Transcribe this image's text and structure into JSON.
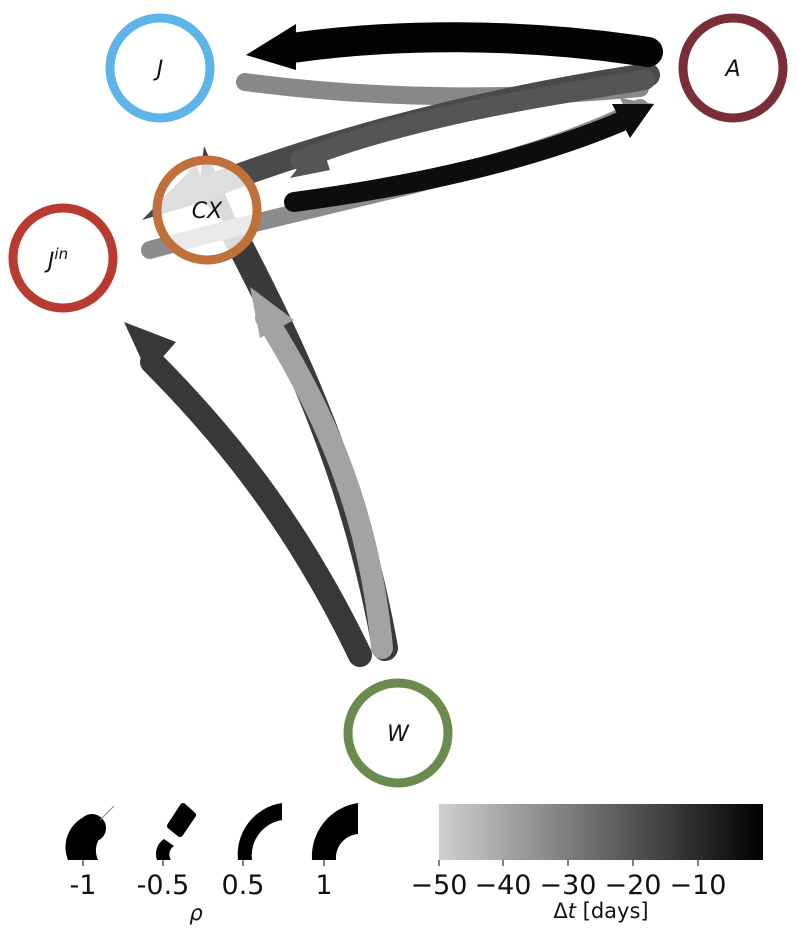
{
  "nodes": [
    {
      "id": "J",
      "label": "J",
      "sup": "",
      "color": "#5db4e8"
    },
    {
      "id": "A",
      "label": "A",
      "sup": "",
      "color": "#7a2e38"
    },
    {
      "id": "CX",
      "label": "CX",
      "sup": "",
      "color": "#c0703a"
    },
    {
      "id": "Jin",
      "label": "J",
      "sup": "in",
      "color": "#b83a30"
    },
    {
      "id": "W",
      "label": "W",
      "sup": "",
      "color": "#6a8a4e"
    }
  ],
  "edges": [
    {
      "from": "A",
      "to": "J",
      "shade": "#030303"
    },
    {
      "from": "Jin",
      "to": "A",
      "shade": "#8c8c8c"
    },
    {
      "from": "J",
      "to": "A",
      "shade": "#888888"
    },
    {
      "from": "A",
      "to": "CX",
      "shade": "#4a4a4a"
    },
    {
      "from": "A",
      "to": "CX",
      "shade": "#555555"
    },
    {
      "from": "CX",
      "to": "A",
      "shade": "#0d0d0d"
    },
    {
      "from": "W",
      "to": "CX",
      "shade": "#3a3a3a"
    },
    {
      "from": "W",
      "to": "Jin",
      "shade": "#383838"
    },
    {
      "from": "W",
      "to": "CX",
      "shade": "#a3a3a3"
    }
  ],
  "rho_legend": {
    "label": "ρ",
    "ticks": [
      "-1",
      "-0.5",
      "0.5",
      "1"
    ]
  },
  "dt_colorbar": {
    "label_prefix": "Δ",
    "label_var": "t",
    "label_suffix": " [days]",
    "color_low": "#d0d0d0",
    "color_high": "#000000",
    "ticks": [
      "−50",
      "−40",
      "−30",
      "−20",
      "−10"
    ]
  }
}
